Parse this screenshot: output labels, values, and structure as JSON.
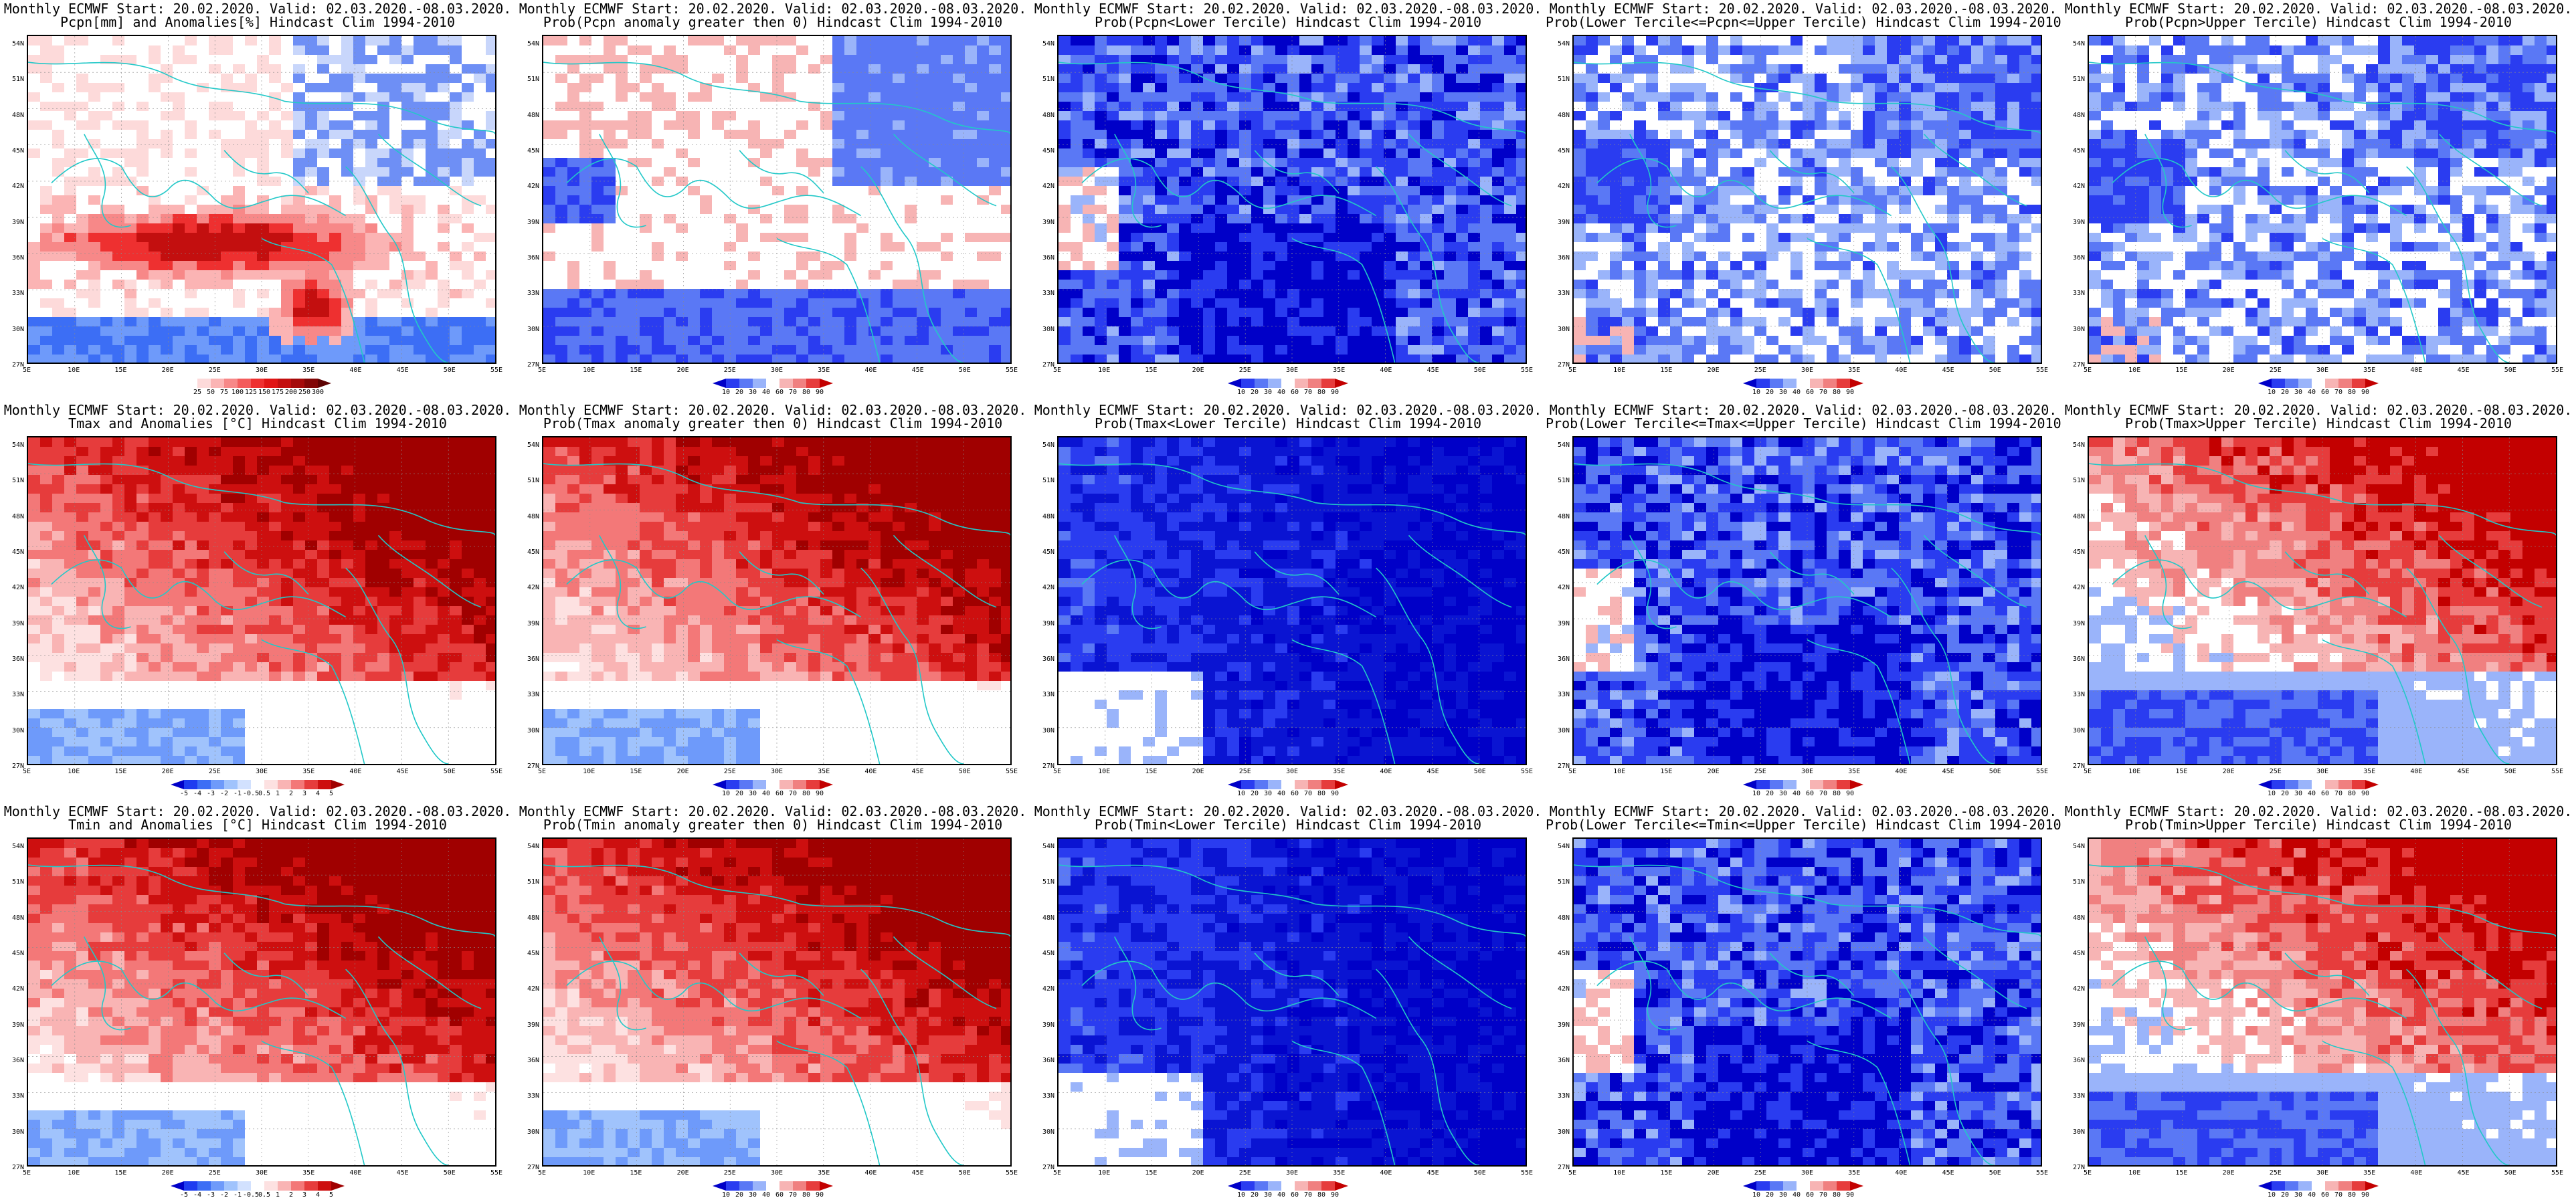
{
  "panels": [
    {
      "title1": "Monthly ECMWF Start: 20.02.2020. Valid: 02.03.2020.-08.03.2020.",
      "title2": "Pcpn[mm] and Anomalies[%] Hindcast Clim 1994-2010",
      "variable": "precipitation anomaly",
      "scheme": "precip",
      "legend": [
        "25",
        "50",
        "75",
        "100",
        "125",
        "150",
        "175",
        "200",
        "250",
        "300"
      ],
      "legend_colors": [
        "#ffffff",
        "#fddada",
        "#fbb4b4",
        "#f78888",
        "#f35c5c",
        "#ee3030",
        "#e01515",
        "#c30f0f",
        "#a50a0a",
        "#820606",
        "#5e0303"
      ]
    },
    {
      "title1": "Monthly ECMWF Start: 20.02.2020. Valid: 02.03.2020.-08.03.2020.",
      "title2": "Prob(Pcpn anomaly greater then 0) Hindcast Clim 1994-2010",
      "variable": "precipitation probability",
      "scheme": "bluewet",
      "legend": [
        "10",
        "20",
        "30",
        "40",
        "60",
        "70",
        "80",
        "90"
      ],
      "legend_colors": [
        "#0000c8",
        "#2a3cf0",
        "#5a78f5",
        "#9ab4fa",
        "#ffffff",
        "#f7b4b4",
        "#f08080",
        "#e63c3c",
        "#c30000"
      ]
    },
    {
      "title1": "Monthly ECMWF Start: 20.02.2020. Valid: 02.03.2020.-08.03.2020.",
      "title2": "Prob(Pcpn<Lower Tercile) Hindcast Clim 1994-2010",
      "variable": "precipitation lower tercile probability",
      "scheme": "blue",
      "legend": [
        "10",
        "20",
        "30",
        "40",
        "60",
        "70",
        "80",
        "90"
      ],
      "legend_colors": [
        "#0000c8",
        "#2a3cf0",
        "#5a78f5",
        "#9ab4fa",
        "#ffffff",
        "#f7b4b4",
        "#f08080",
        "#e63c3c",
        "#c30000"
      ]
    },
    {
      "title1": "Monthly ECMWF Start: 20.02.2020. Valid: 02.03.2020.-08.03.2020.",
      "title2": "Prob(Lower Tercile<=Pcpn<=Upper Tercile) Hindcast Clim 1994-2010",
      "variable": "precipitation middle tercile probability",
      "scheme": "mixedblue",
      "legend": [
        "10",
        "20",
        "30",
        "40",
        "60",
        "70",
        "80",
        "90"
      ],
      "legend_colors": [
        "#0000c8",
        "#2a3cf0",
        "#5a78f5",
        "#9ab4fa",
        "#ffffff",
        "#f7b4b4",
        "#f08080",
        "#e63c3c",
        "#c30000"
      ]
    },
    {
      "title1": "Monthly ECMWF Start: 20.02.2020. Valid: 02.03.2020.-08.03.2020.",
      "title2": "Prob(Pcpn>Upper Tercile) Hindcast Clim 1994-2010",
      "variable": "precipitation upper tercile probability",
      "scheme": "mixedblue",
      "legend": [
        "10",
        "20",
        "30",
        "40",
        "60",
        "70",
        "80",
        "90"
      ],
      "legend_colors": [
        "#0000c8",
        "#2a3cf0",
        "#5a78f5",
        "#9ab4fa",
        "#ffffff",
        "#f7b4b4",
        "#f08080",
        "#e63c3c",
        "#c30000"
      ]
    },
    {
      "title1": "Monthly ECMWF Start: 20.02.2020. Valid: 02.03.2020.-08.03.2020.",
      "title2": "Tmax and Anomalies [°C] Hindcast Clim 1994-2010",
      "variable": "tmax anomaly",
      "scheme": "redwarm",
      "legend": [
        "-5",
        "-4",
        "-3",
        "-2",
        "-1",
        "-0.5",
        "0.5",
        "1",
        "2",
        "3",
        "4",
        "5"
      ],
      "legend_colors": [
        "#0000c8",
        "#1e3cf0",
        "#3c6ef5",
        "#6e9afa",
        "#a0c3fc",
        "#d2e1fe",
        "#ffffff",
        "#fde1e1",
        "#f9b4b4",
        "#f37878",
        "#e63c3c",
        "#cd0f0f",
        "#a00000"
      ]
    },
    {
      "title1": "Monthly ECMWF Start: 20.02.2020. Valid: 02.03.2020.-08.03.2020.",
      "title2": "Prob(Tmax anomaly greater then 0) Hindcast Clim 1994-2010",
      "variable": "tmax probability",
      "scheme": "redwarm",
      "legend": [
        "10",
        "20",
        "30",
        "40",
        "60",
        "70",
        "80",
        "90"
      ],
      "legend_colors": [
        "#0000c8",
        "#2a3cf0",
        "#5a78f5",
        "#9ab4fa",
        "#ffffff",
        "#f7b4b4",
        "#f08080",
        "#e63c3c",
        "#c30000"
      ]
    },
    {
      "title1": "Monthly ECMWF Start: 20.02.2020. Valid: 02.03.2020.-08.03.2020.",
      "title2": "Prob(Tmax<Lower Tercile) Hindcast Clim 1994-2010",
      "variable": "tmax lower tercile probability",
      "scheme": "deepblue",
      "legend": [
        "10",
        "20",
        "30",
        "40",
        "60",
        "70",
        "80",
        "90"
      ],
      "legend_colors": [
        "#0000c8",
        "#2a3cf0",
        "#5a78f5",
        "#9ab4fa",
        "#ffffff",
        "#f7b4b4",
        "#f08080",
        "#e63c3c",
        "#c30000"
      ]
    },
    {
      "title1": "Monthly ECMWF Start: 20.02.2020. Valid: 02.03.2020.-08.03.2020.",
      "title2": "Prob(Lower Tercile<=Tmax<=Upper Tercile) Hindcast Clim 1994-2010",
      "variable": "tmax middle tercile probability",
      "scheme": "blue",
      "legend": [
        "10",
        "20",
        "30",
        "40",
        "60",
        "70",
        "80",
        "90"
      ],
      "legend_colors": [
        "#0000c8",
        "#2a3cf0",
        "#5a78f5",
        "#9ab4fa",
        "#ffffff",
        "#f7b4b4",
        "#f08080",
        "#e63c3c",
        "#c30000"
      ]
    },
    {
      "title1": "Monthly ECMWF Start: 20.02.2020. Valid: 02.03.2020.-08.03.2020.",
      "title2": "Prob(Tmax>Upper Tercile) Hindcast Clim 1994-2010",
      "variable": "tmax upper tercile probability",
      "scheme": "redupper",
      "legend": [
        "10",
        "20",
        "30",
        "40",
        "60",
        "70",
        "80",
        "90"
      ],
      "legend_colors": [
        "#0000c8",
        "#2a3cf0",
        "#5a78f5",
        "#9ab4fa",
        "#ffffff",
        "#f7b4b4",
        "#f08080",
        "#e63c3c",
        "#c30000"
      ]
    },
    {
      "title1": "Monthly ECMWF Start: 20.02.2020. Valid: 02.03.2020.-08.03.2020.",
      "title2": "Tmin and Anomalies [°C] Hindcast Clim 1994-2010",
      "variable": "tmin anomaly",
      "scheme": "redwarm",
      "legend": [
        "-5",
        "-4",
        "-3",
        "-2",
        "-1",
        "-0.5",
        "0.5",
        "1",
        "2",
        "3",
        "4",
        "5"
      ],
      "legend_colors": [
        "#0000c8",
        "#1e3cf0",
        "#3c6ef5",
        "#6e9afa",
        "#a0c3fc",
        "#d2e1fe",
        "#ffffff",
        "#fde1e1",
        "#f9b4b4",
        "#f37878",
        "#e63c3c",
        "#cd0f0f",
        "#a00000"
      ]
    },
    {
      "title1": "Monthly ECMWF Start: 20.02.2020. Valid: 02.03.2020.-08.03.2020.",
      "title2": "Prob(Tmin anomaly greater then 0) Hindcast Clim 1994-2010",
      "variable": "tmin probability",
      "scheme": "redwarm",
      "legend": [
        "10",
        "20",
        "30",
        "40",
        "60",
        "70",
        "80",
        "90"
      ],
      "legend_colors": [
        "#0000c8",
        "#2a3cf0",
        "#5a78f5",
        "#9ab4fa",
        "#ffffff",
        "#f7b4b4",
        "#f08080",
        "#e63c3c",
        "#c30000"
      ]
    },
    {
      "title1": "Monthly ECMWF Start: 20.02.2020. Valid: 02.03.2020.-08.03.2020.",
      "title2": "Prob(Tmin<Lower Tercile) Hindcast Clim 1994-2010",
      "variable": "tmin lower tercile probability",
      "scheme": "deepblue",
      "legend": [
        "10",
        "20",
        "30",
        "40",
        "60",
        "70",
        "80",
        "90"
      ],
      "legend_colors": [
        "#0000c8",
        "#2a3cf0",
        "#5a78f5",
        "#9ab4fa",
        "#ffffff",
        "#f7b4b4",
        "#f08080",
        "#e63c3c",
        "#c30000"
      ]
    },
    {
      "title1": "Monthly ECMWF Start: 20.02.2020. Valid: 02.03.2020.-08.03.2020.",
      "title2": "Prob(Lower Tercile<=Tmin<=Upper Tercile) Hindcast Clim 1994-2010",
      "variable": "tmin middle tercile probability",
      "scheme": "blue",
      "legend": [
        "10",
        "20",
        "30",
        "40",
        "60",
        "70",
        "80",
        "90"
      ],
      "legend_colors": [
        "#0000c8",
        "#2a3cf0",
        "#5a78f5",
        "#9ab4fa",
        "#ffffff",
        "#f7b4b4",
        "#f08080",
        "#e63c3c",
        "#c30000"
      ]
    },
    {
      "title1": "Monthly ECMWF Start: 20.02.2020. Valid: 02.03.2020.-08.03.2020.",
      "title2": "Prob(Tmin>Upper Tercile) Hindcast Clim 1994-2010",
      "variable": "tmin upper tercile probability",
      "scheme": "redupper",
      "legend": [
        "10",
        "20",
        "30",
        "40",
        "60",
        "70",
        "80",
        "90"
      ],
      "legend_colors": [
        "#0000c8",
        "#2a3cf0",
        "#5a78f5",
        "#9ab4fa",
        "#ffffff",
        "#f7b4b4",
        "#f08080",
        "#e63c3c",
        "#c30000"
      ]
    }
  ],
  "axes": {
    "lat_ticks": [
      "54N",
      "51N",
      "48N",
      "45N",
      "42N",
      "39N",
      "36N",
      "33N",
      "30N",
      "27N"
    ],
    "lon_ticks": [
      "5E",
      "10E",
      "15E",
      "20E",
      "25E",
      "30E",
      "35E",
      "40E",
      "45E",
      "50E",
      "55E"
    ]
  },
  "colors": {
    "coast": "#22c8c8",
    "contour": "#000000",
    "gridline": "#8a8a8a"
  }
}
